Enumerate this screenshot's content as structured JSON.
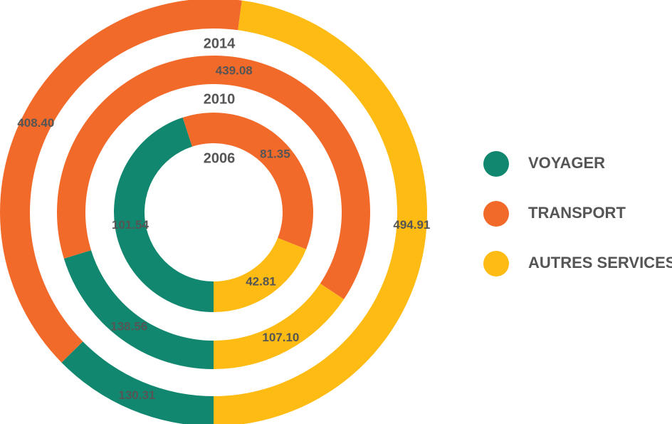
{
  "chart_data": {
    "type": "nested-donut",
    "categories": [
      "2006",
      "2010",
      "2014"
    ],
    "series": [
      {
        "name": "VOYAGER",
        "color": "#12876f",
        "values": [
          101.54,
          138.56,
          130.31
        ],
        "value_labels": [
          "101.54",
          "138.56",
          "130.31"
        ]
      },
      {
        "name": "TRANSPORT",
        "color": "#f26a2a",
        "values": [
          81.35,
          439.08,
          408.4
        ],
        "value_labels": [
          "81.35",
          "439.08",
          "408.40"
        ]
      },
      {
        "name": "AUTRES SERVICES",
        "color": "#fdbb13",
        "values": [
          42.81,
          107.1,
          494.91
        ],
        "value_labels": [
          "42.81",
          "107.10",
          "494.91"
        ]
      }
    ],
    "legend": "right"
  }
}
